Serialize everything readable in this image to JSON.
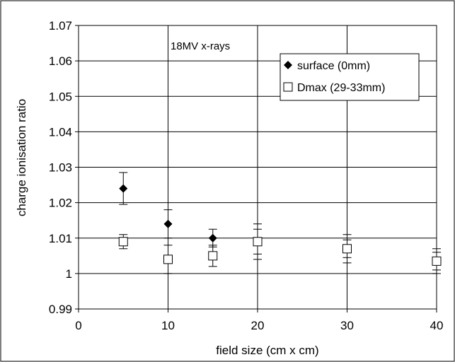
{
  "chart_data": {
    "type": "scatter",
    "xlabel": "field size (cm x cm)",
    "ylabel": "charge ionisation ratio",
    "xlim": [
      0,
      40
    ],
    "ylim": [
      0.99,
      1.07
    ],
    "xticks": [
      0,
      10,
      20,
      30,
      40
    ],
    "yticks": [
      0.99,
      1,
      1.01,
      1.02,
      1.03,
      1.04,
      1.05,
      1.06,
      1.07
    ],
    "xtick_labels": [
      "0",
      "10",
      "20",
      "30",
      "40"
    ],
    "ytick_labels": [
      "0.99",
      "1",
      "1.01",
      "1.02",
      "1.03",
      "1.04",
      "1.05",
      "1.06",
      "1.07"
    ],
    "grid": true,
    "annotation": "18MV x-rays",
    "legend_position": "top-right",
    "series": [
      {
        "name": "surface (0mm)",
        "marker": "filled-diamond",
        "x": [
          5,
          10,
          15,
          20,
          30,
          40
        ],
        "y": [
          1.024,
          1.014,
          1.01,
          1.009,
          1.007,
          1.0035
        ],
        "err_low": [
          1.0195,
          1.01,
          1.0075,
          1.0055,
          1.0045,
          1.001
        ],
        "err_high": [
          1.0285,
          1.018,
          1.0125,
          1.0125,
          1.0095,
          1.006
        ]
      },
      {
        "name": "Dmax (29-33mm)",
        "marker": "open-square",
        "x": [
          5,
          10,
          15,
          20,
          30,
          40
        ],
        "y": [
          1.009,
          1.004,
          1.005,
          1.009,
          1.007,
          1.0035
        ],
        "err_low": [
          1.007,
          1.0,
          1.002,
          1.004,
          1.003,
          1.0
        ],
        "err_high": [
          1.011,
          1.008,
          1.008,
          1.014,
          1.011,
          1.007
        ]
      }
    ]
  }
}
